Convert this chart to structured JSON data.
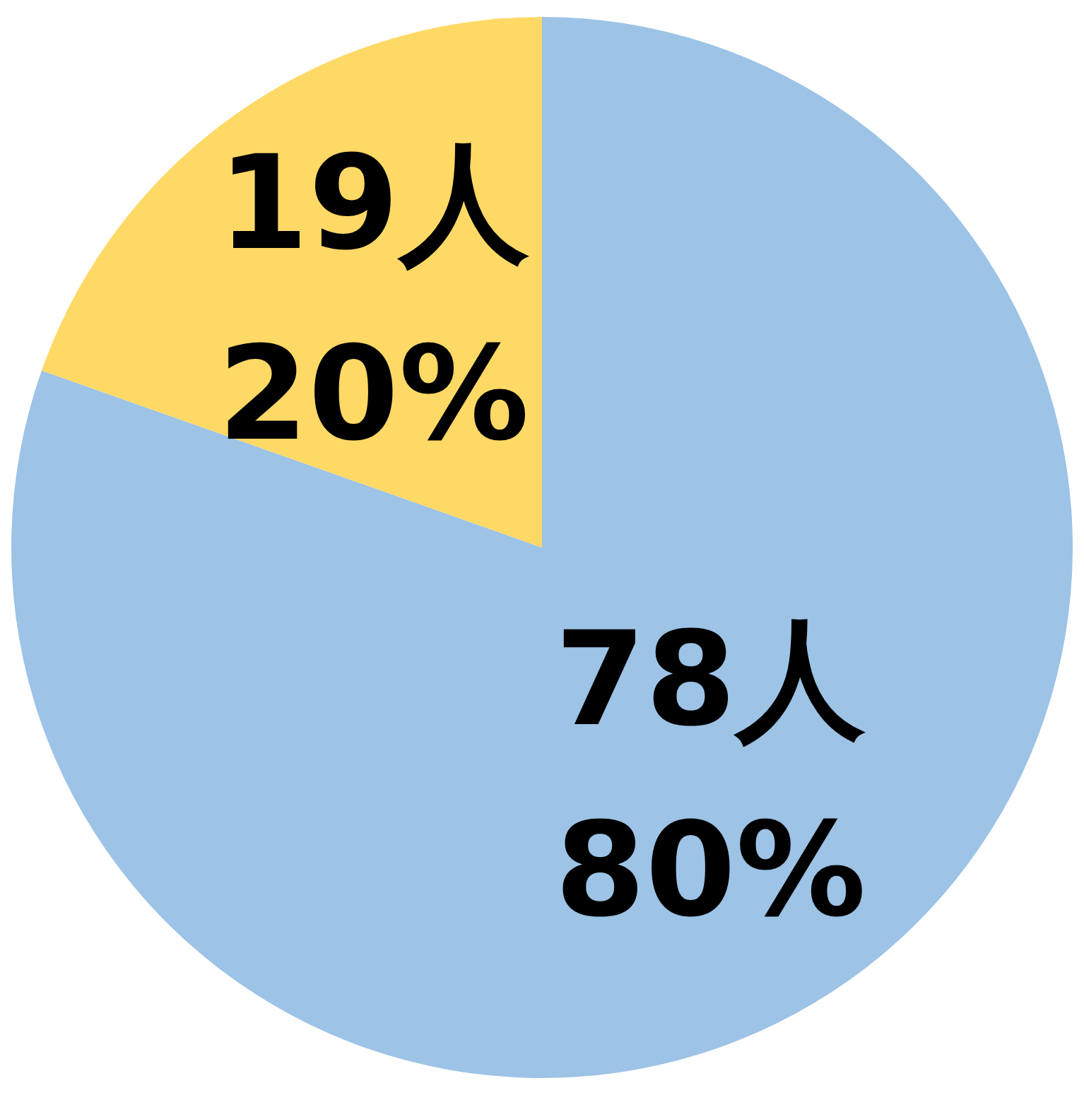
{
  "chart_data": {
    "type": "pie",
    "categories": [
      null,
      null
    ],
    "values": [
      78,
      19
    ],
    "colors": [
      "#9dc3e6",
      "#ffd966"
    ],
    "value_labels": [
      "78人\n80%",
      "19人\n20%"
    ],
    "legend": false
  }
}
